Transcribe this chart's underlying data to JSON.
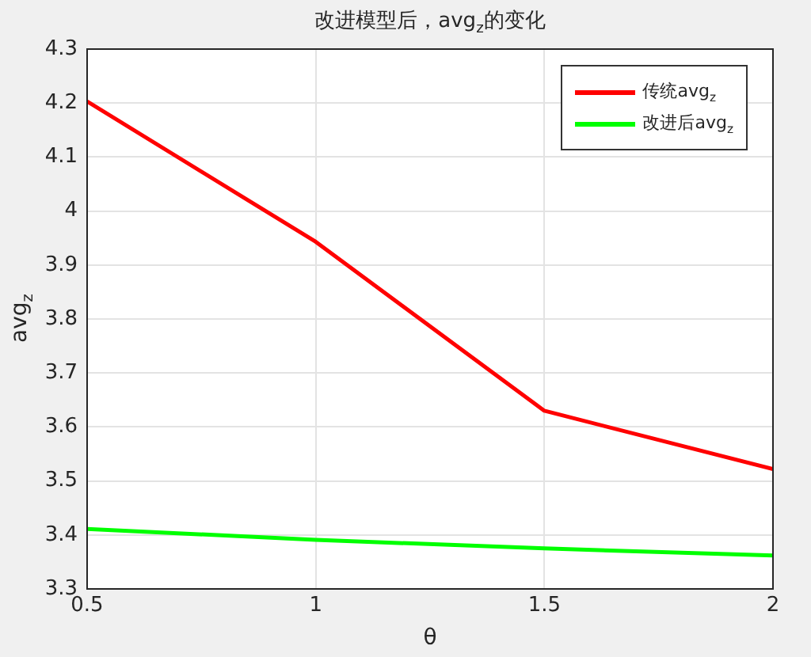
{
  "chart_data": {
    "type": "line",
    "title": "改进模型后，avg$_{z}$的变化",
    "xlabel": "θ",
    "ylabel": "avg$_{z}$",
    "x": [
      0.5,
      1,
      1.5,
      2
    ],
    "series": [
      {
        "name": "传统avg$_{z}$",
        "color": "#ff0000",
        "values": [
          4.203,
          3.943,
          3.63,
          3.522
        ]
      },
      {
        "name": "改进后avg$_{z}$",
        "color": "#00ff00",
        "values": [
          3.411,
          3.391,
          3.375,
          3.362
        ]
      }
    ],
    "xlim": [
      0.5,
      2
    ],
    "xticks": [
      0.5,
      1,
      1.5,
      2
    ],
    "ylim": [
      3.3,
      4.3
    ],
    "yticks": [
      3.3,
      3.4,
      3.5,
      3.6,
      3.7,
      3.8,
      3.9,
      4,
      4.1,
      4.2,
      4.3
    ],
    "grid": true,
    "legend": "top right",
    "marker": "none",
    "line_style": "solid"
  }
}
